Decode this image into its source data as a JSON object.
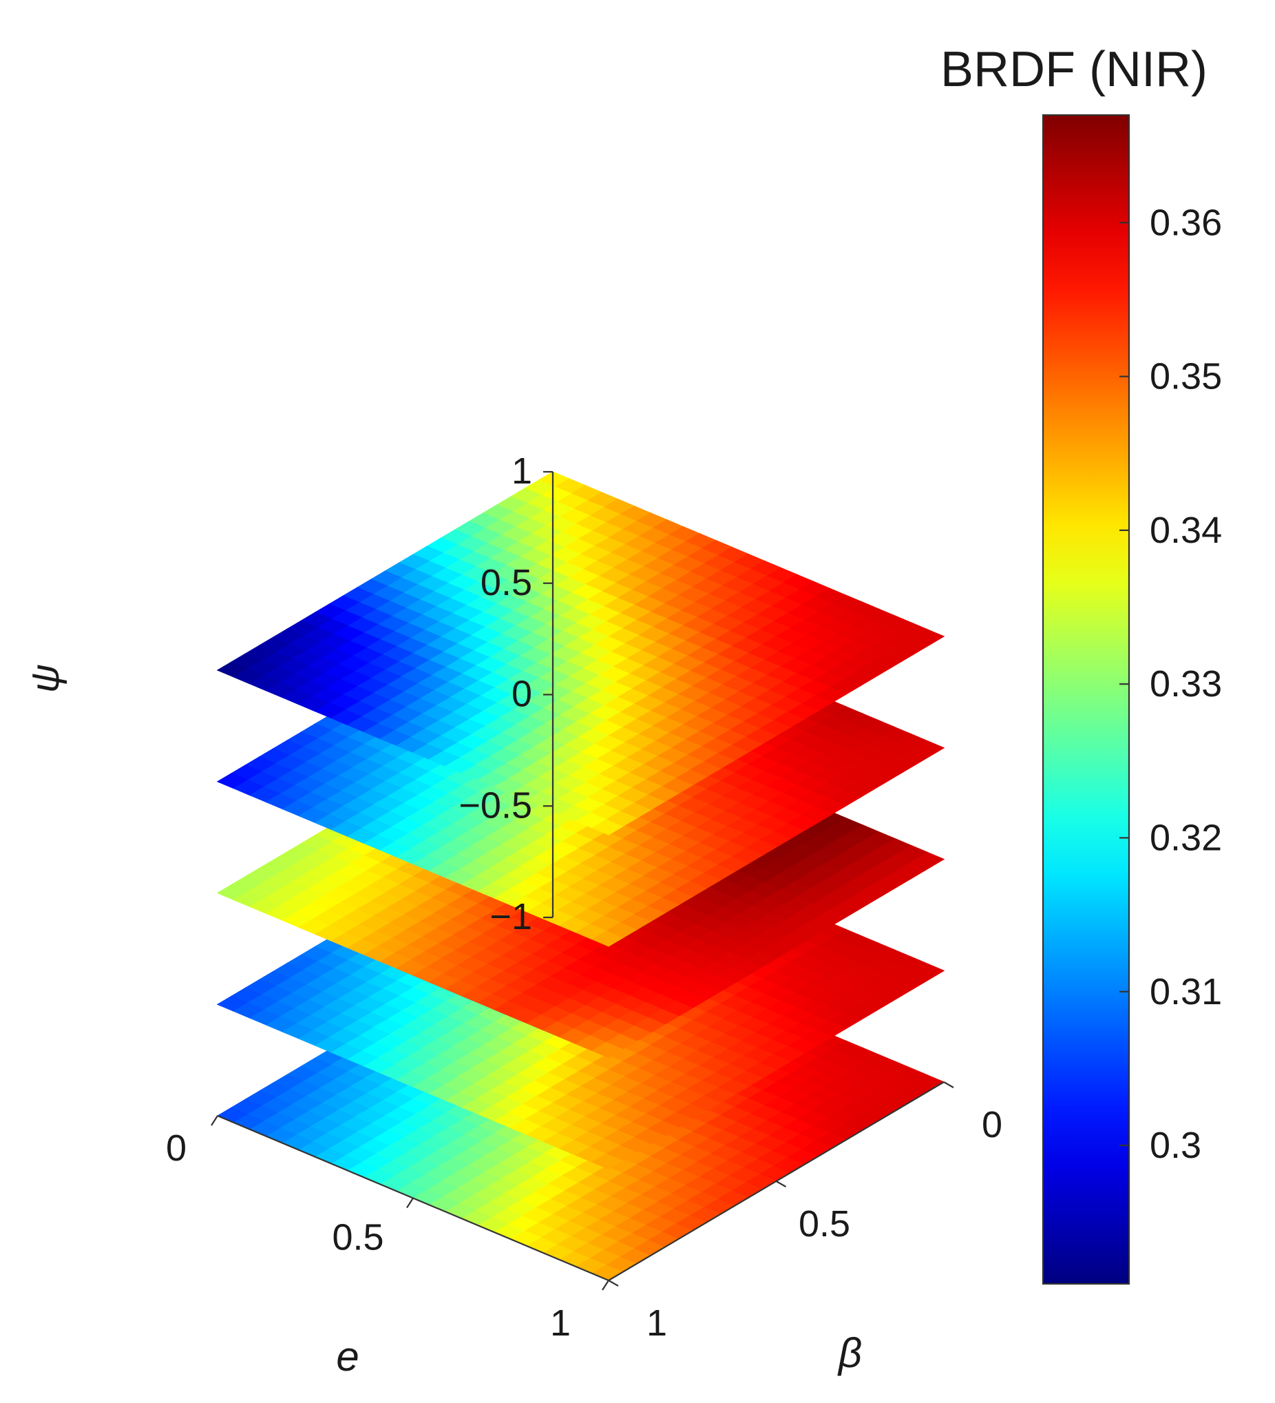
{
  "chart_data": {
    "type": "heatmap",
    "title": "",
    "colorbar": {
      "label": "BRDF (NIR)",
      "colormap": "jet",
      "range": [
        0.291,
        0.367
      ],
      "ticks": [
        0.3,
        0.31,
        0.32,
        0.33,
        0.34,
        0.35,
        0.36
      ],
      "tick_labels": [
        "0.3",
        "0.31",
        "0.32",
        "0.33",
        "0.34",
        "0.35",
        "0.36"
      ]
    },
    "axes": {
      "x": {
        "label": "e",
        "range": [
          0,
          1
        ],
        "ticks": [
          0,
          0.5,
          1
        ],
        "tick_labels": [
          "0",
          "0.5",
          "1"
        ]
      },
      "y": {
        "label": "β",
        "range": [
          0,
          1
        ],
        "ticks": [
          0,
          0.5,
          1
        ],
        "tick_labels": [
          "0",
          "0.5",
          "1"
        ]
      },
      "z": {
        "label": "ψ",
        "range": [
          -1,
          1
        ],
        "ticks": [
          -1,
          -0.5,
          0,
          0.5,
          1
        ],
        "tick_labels": [
          "−1",
          "−0.5",
          "0",
          "0.5",
          "1"
        ]
      }
    },
    "grid": false,
    "e": [
      0,
      0.25,
      0.5,
      0.75,
      1
    ],
    "beta": [
      0,
      0.25,
      0.5,
      0.75,
      1
    ],
    "slices": [
      {
        "psi": 1,
        "values": [
          [
            0.34,
            0.347,
            0.355,
            0.36,
            0.36
          ],
          [
            0.325,
            0.338,
            0.348,
            0.356,
            0.36
          ],
          [
            0.31,
            0.32,
            0.335,
            0.347,
            0.356
          ],
          [
            0.295,
            0.305,
            0.32,
            0.338,
            0.35
          ],
          [
            0.291,
            0.298,
            0.312,
            0.33,
            0.34
          ]
        ]
      },
      {
        "psi": 0.5,
        "values": [
          [
            0.335,
            0.345,
            0.356,
            0.362,
            0.36
          ],
          [
            0.323,
            0.338,
            0.35,
            0.358,
            0.36
          ],
          [
            0.313,
            0.323,
            0.338,
            0.352,
            0.356
          ],
          [
            0.305,
            0.315,
            0.328,
            0.343,
            0.352
          ],
          [
            0.3,
            0.31,
            0.323,
            0.338,
            0.345
          ]
        ]
      },
      {
        "psi": 0,
        "values": [
          [
            0.354,
            0.362,
            0.367,
            0.367,
            0.36
          ],
          [
            0.344,
            0.356,
            0.364,
            0.366,
            0.36
          ],
          [
            0.34,
            0.35,
            0.358,
            0.362,
            0.36
          ],
          [
            0.333,
            0.342,
            0.352,
            0.358,
            0.357
          ],
          [
            0.332,
            0.34,
            0.348,
            0.354,
            0.345
          ]
        ]
      },
      {
        "psi": -0.5,
        "values": [
          [
            0.332,
            0.343,
            0.355,
            0.361,
            0.36
          ],
          [
            0.325,
            0.338,
            0.35,
            0.358,
            0.36
          ],
          [
            0.315,
            0.326,
            0.34,
            0.352,
            0.356
          ],
          [
            0.308,
            0.318,
            0.33,
            0.345,
            0.352
          ],
          [
            0.305,
            0.313,
            0.325,
            0.338,
            0.345
          ]
        ]
      },
      {
        "psi": -1,
        "values": [
          [
            0.33,
            0.342,
            0.355,
            0.36,
            0.36
          ],
          [
            0.322,
            0.336,
            0.348,
            0.357,
            0.36
          ],
          [
            0.312,
            0.324,
            0.338,
            0.35,
            0.356
          ],
          [
            0.308,
            0.318,
            0.33,
            0.344,
            0.352
          ],
          [
            0.305,
            0.314,
            0.326,
            0.338,
            0.345
          ]
        ]
      }
    ]
  }
}
